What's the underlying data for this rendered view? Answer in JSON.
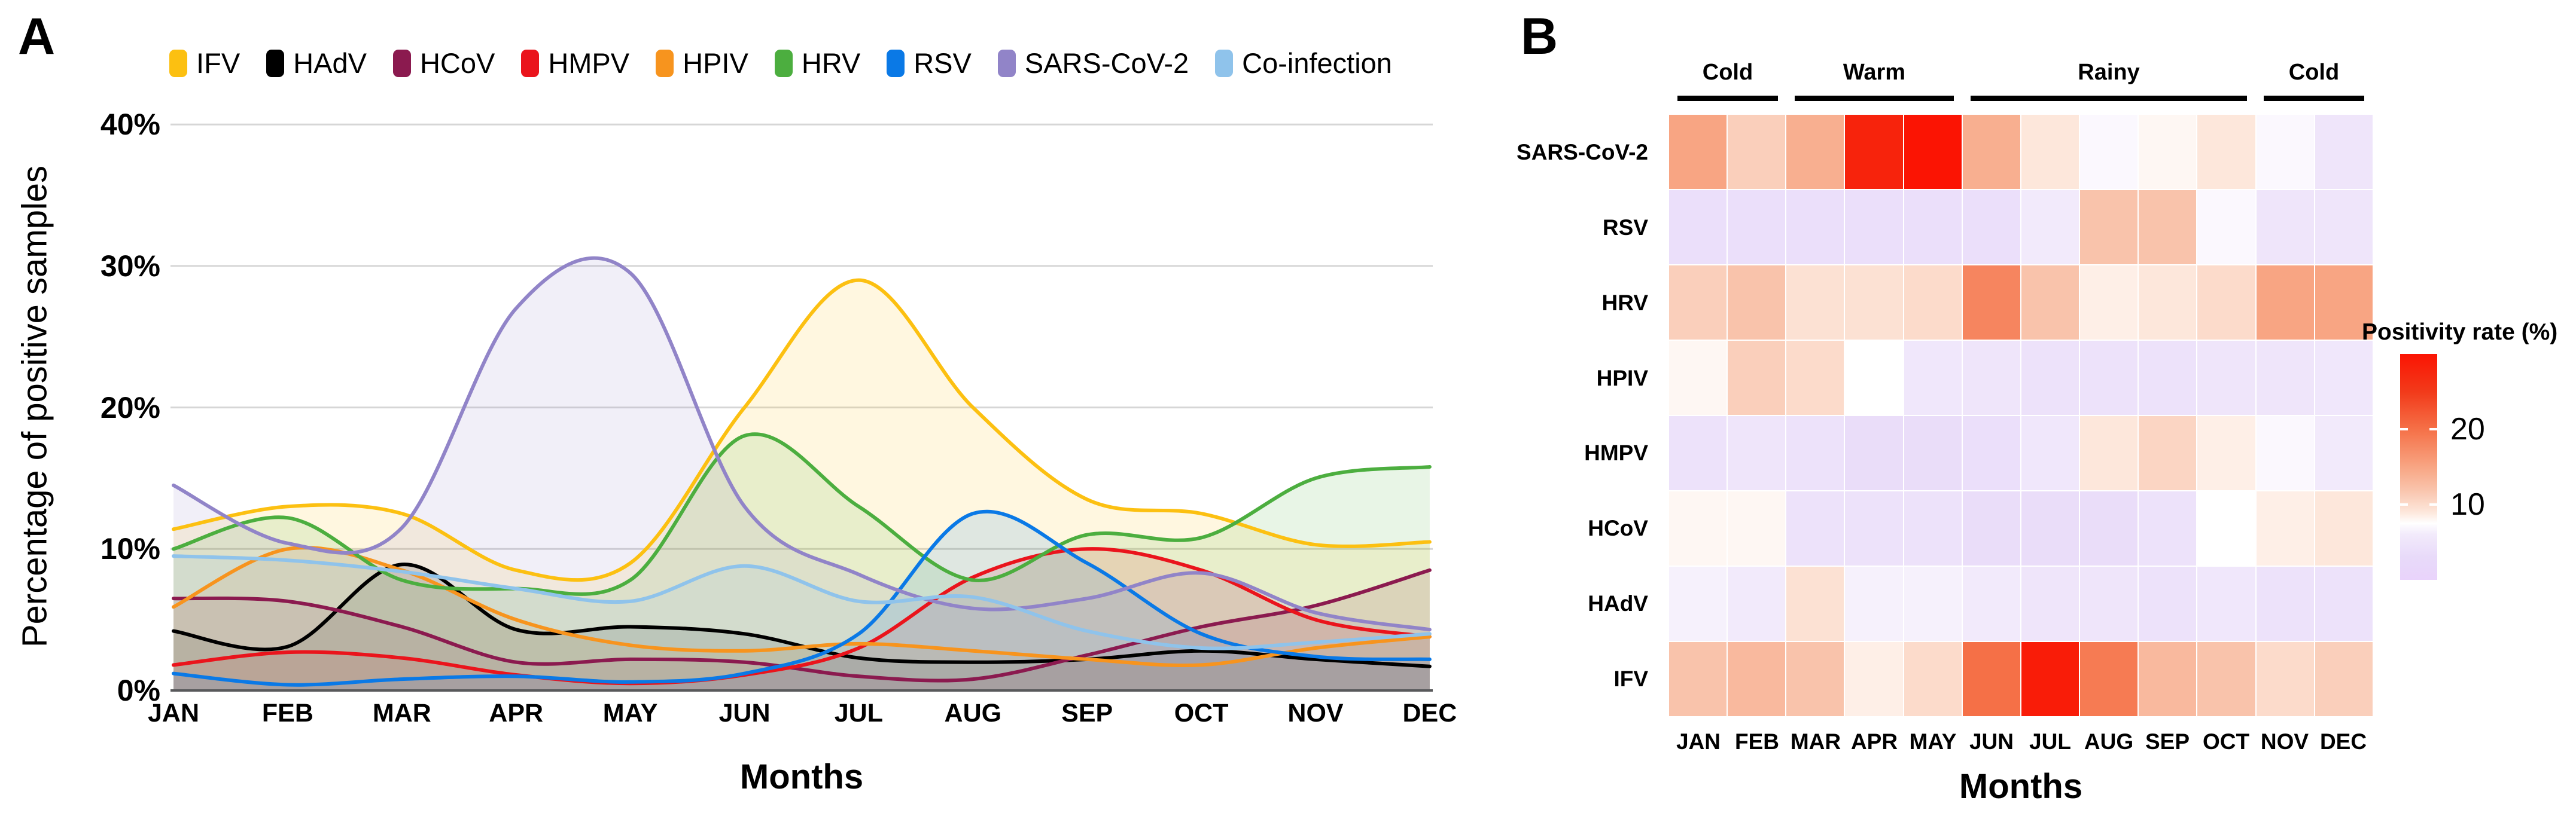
{
  "months": [
    "JAN",
    "FEB",
    "MAR",
    "APR",
    "MAY",
    "JUN",
    "JUL",
    "AUG",
    "SEP",
    "OCT",
    "NOV",
    "DEC"
  ],
  "panel_a": {
    "label": "A",
    "y_axis_title": "Percentage of positive samples",
    "x_axis_title": "Months",
    "y_tick_labels": [
      "40%",
      "30%",
      "20%",
      "10%",
      "0%"
    ],
    "y_tick_values": [
      40,
      30,
      20,
      10,
      0
    ],
    "legend": [
      {
        "label": "IFV",
        "color": "#FCC011"
      },
      {
        "label": "HAdV",
        "color": "#000000"
      },
      {
        "label": "HCoV",
        "color": "#8B1A4F"
      },
      {
        "label": "HMPV",
        "color": "#EA141C"
      },
      {
        "label": "HPIV",
        "color": "#F7941E"
      },
      {
        "label": "HRV",
        "color": "#4CAE3F"
      },
      {
        "label": "RSV",
        "color": "#0A79E6"
      },
      {
        "label": "SARS-CoV-2",
        "color": "#9184C8"
      },
      {
        "label": "Co-infection",
        "color": "#8FC3EB"
      }
    ]
  },
  "panel_b": {
    "label": "B",
    "x_axis_title": "Months",
    "row_labels": [
      "SARS-CoV-2",
      "RSV",
      "HRV",
      "HPIV",
      "HMPV",
      "HCoV",
      "HAdV",
      "IFV"
    ],
    "seasons": [
      {
        "label": "Cold",
        "start_col": 0,
        "end_col": 1
      },
      {
        "label": "Warm",
        "start_col": 2,
        "end_col": 4
      },
      {
        "label": "Rainy",
        "start_col": 5,
        "end_col": 9
      },
      {
        "label": "Cold",
        "start_col": 10,
        "end_col": 11
      }
    ],
    "legend_title": "Positivity rate (%)",
    "legend_ticks": [
      20,
      10
    ]
  },
  "chart_data": [
    {
      "panel": "A",
      "type": "area",
      "title": "Monthly percentage of positive samples by virus",
      "x": [
        "JAN",
        "FEB",
        "MAR",
        "APR",
        "MAY",
        "JUN",
        "JUL",
        "AUG",
        "SEP",
        "OCT",
        "NOV",
        "DEC"
      ],
      "xlabel": "Months",
      "ylabel": "Percentage of positive samples",
      "ylim": [
        0,
        40
      ],
      "y_tick_format": "percent",
      "grid": true,
      "legend_position": "top",
      "line_width": 6,
      "fill_opacity": 0.13,
      "gridline_color": "#D6D6D6",
      "axis_color": "#58595B",
      "series": [
        {
          "name": "IFV",
          "color": "#FCC011",
          "values": [
            11.4,
            13,
            12.5,
            8.5,
            9,
            20,
            29,
            20,
            13.5,
            12.5,
            10.3,
            10.5
          ]
        },
        {
          "name": "HAdV",
          "color": "#000000",
          "values": [
            4.2,
            3.1,
            8.9,
            4.3,
            4.5,
            4,
            2.3,
            2,
            2.2,
            2.8,
            2.2,
            1.7
          ]
        },
        {
          "name": "HCoV",
          "color": "#8B1A4F",
          "values": [
            6.5,
            6.3,
            4.5,
            2,
            2.2,
            2,
            1,
            0.8,
            2.5,
            4.5,
            6,
            8.5
          ]
        },
        {
          "name": "HMPV",
          "color": "#EA141C",
          "values": [
            1.8,
            2.7,
            2.3,
            1.1,
            0.5,
            1.1,
            3,
            8,
            10,
            8.5,
            5,
            3.8
          ]
        },
        {
          "name": "HPIV",
          "color": "#F7941E",
          "values": [
            5.9,
            10,
            8.5,
            5,
            3.2,
            2.8,
            3.3,
            2.8,
            2.2,
            1.8,
            3,
            3.8
          ]
        },
        {
          "name": "HRV",
          "color": "#4CAE3F",
          "values": [
            10,
            12.2,
            7.8,
            7.2,
            7.8,
            18,
            13,
            7.8,
            11,
            10.8,
            15,
            15.8
          ]
        },
        {
          "name": "RSV",
          "color": "#0A79E6",
          "values": [
            1.2,
            0.4,
            0.8,
            1,
            0.6,
            1.2,
            4,
            12.5,
            9,
            4,
            2.4,
            2.2
          ]
        },
        {
          "name": "SARS-CoV-2",
          "color": "#9184C8",
          "values": [
            14.5,
            10.4,
            11.5,
            27,
            29.5,
            13,
            8.2,
            5.8,
            6.5,
            8.3,
            5.5,
            4.3
          ]
        },
        {
          "name": "Co-infection",
          "color": "#8FC3EB",
          "values": [
            9.5,
            9.2,
            8.4,
            7.2,
            6.3,
            8.8,
            6.3,
            6.6,
            4.2,
            3,
            3.4,
            4
          ]
        }
      ]
    },
    {
      "panel": "B",
      "type": "heatmap",
      "title": "Positivity rate (%)",
      "rows": [
        "SARS-CoV-2",
        "RSV",
        "HRV",
        "HPIV",
        "HMPV",
        "HCoV",
        "HAdV",
        "IFV"
      ],
      "columns": [
        "JAN",
        "FEB",
        "MAR",
        "APR",
        "MAY",
        "JUN",
        "JUL",
        "AUG",
        "SEP",
        "OCT",
        "NOV",
        "DEC"
      ],
      "values": [
        [
          15,
          11,
          14,
          28,
          30,
          14,
          9,
          7,
          8,
          9,
          7,
          5
        ],
        [
          4,
          4,
          4,
          4,
          4,
          4,
          6,
          12,
          12,
          7,
          5,
          5
        ],
        [
          11,
          12,
          9.5,
          9.5,
          10,
          18,
          12,
          8.5,
          9,
          10,
          15,
          15
        ],
        [
          8,
          11,
          10,
          7.5,
          5.5,
          5,
          4.5,
          4.5,
          4.5,
          5,
          5,
          5.5
        ],
        [
          4.5,
          5,
          4.5,
          3.5,
          3.5,
          4,
          5.5,
          9,
          10.5,
          8.5,
          7,
          6
        ],
        [
          8,
          8,
          4.5,
          4.5,
          4.5,
          3.5,
          3.5,
          3.5,
          4.5,
          7.5,
          8.5,
          9
        ],
        [
          6.5,
          6,
          9.5,
          6.5,
          6.5,
          6,
          5,
          5,
          4.5,
          5.5,
          4.5,
          4.5
        ],
        [
          12,
          13,
          12,
          8.5,
          10,
          20,
          29,
          19,
          13,
          12,
          10,
          11
        ]
      ],
      "colorbar": {
        "title": "Positivity rate (%)",
        "ticks": [
          20,
          10
        ],
        "domain": [
          0,
          30
        ]
      },
      "palette_stops": [
        [
          0,
          "#E9D3FB"
        ],
        [
          3,
          "#E8DAF9"
        ],
        [
          6,
          "#F2EAFB"
        ],
        [
          7.5,
          "#FFFFFF"
        ],
        [
          9,
          "#FDE7DB"
        ],
        [
          12,
          "#F9C3AB"
        ],
        [
          15,
          "#F8A583"
        ],
        [
          20,
          "#F57047"
        ],
        [
          25,
          "#F23A1A"
        ],
        [
          30,
          "#FB1403"
        ]
      ]
    }
  ]
}
